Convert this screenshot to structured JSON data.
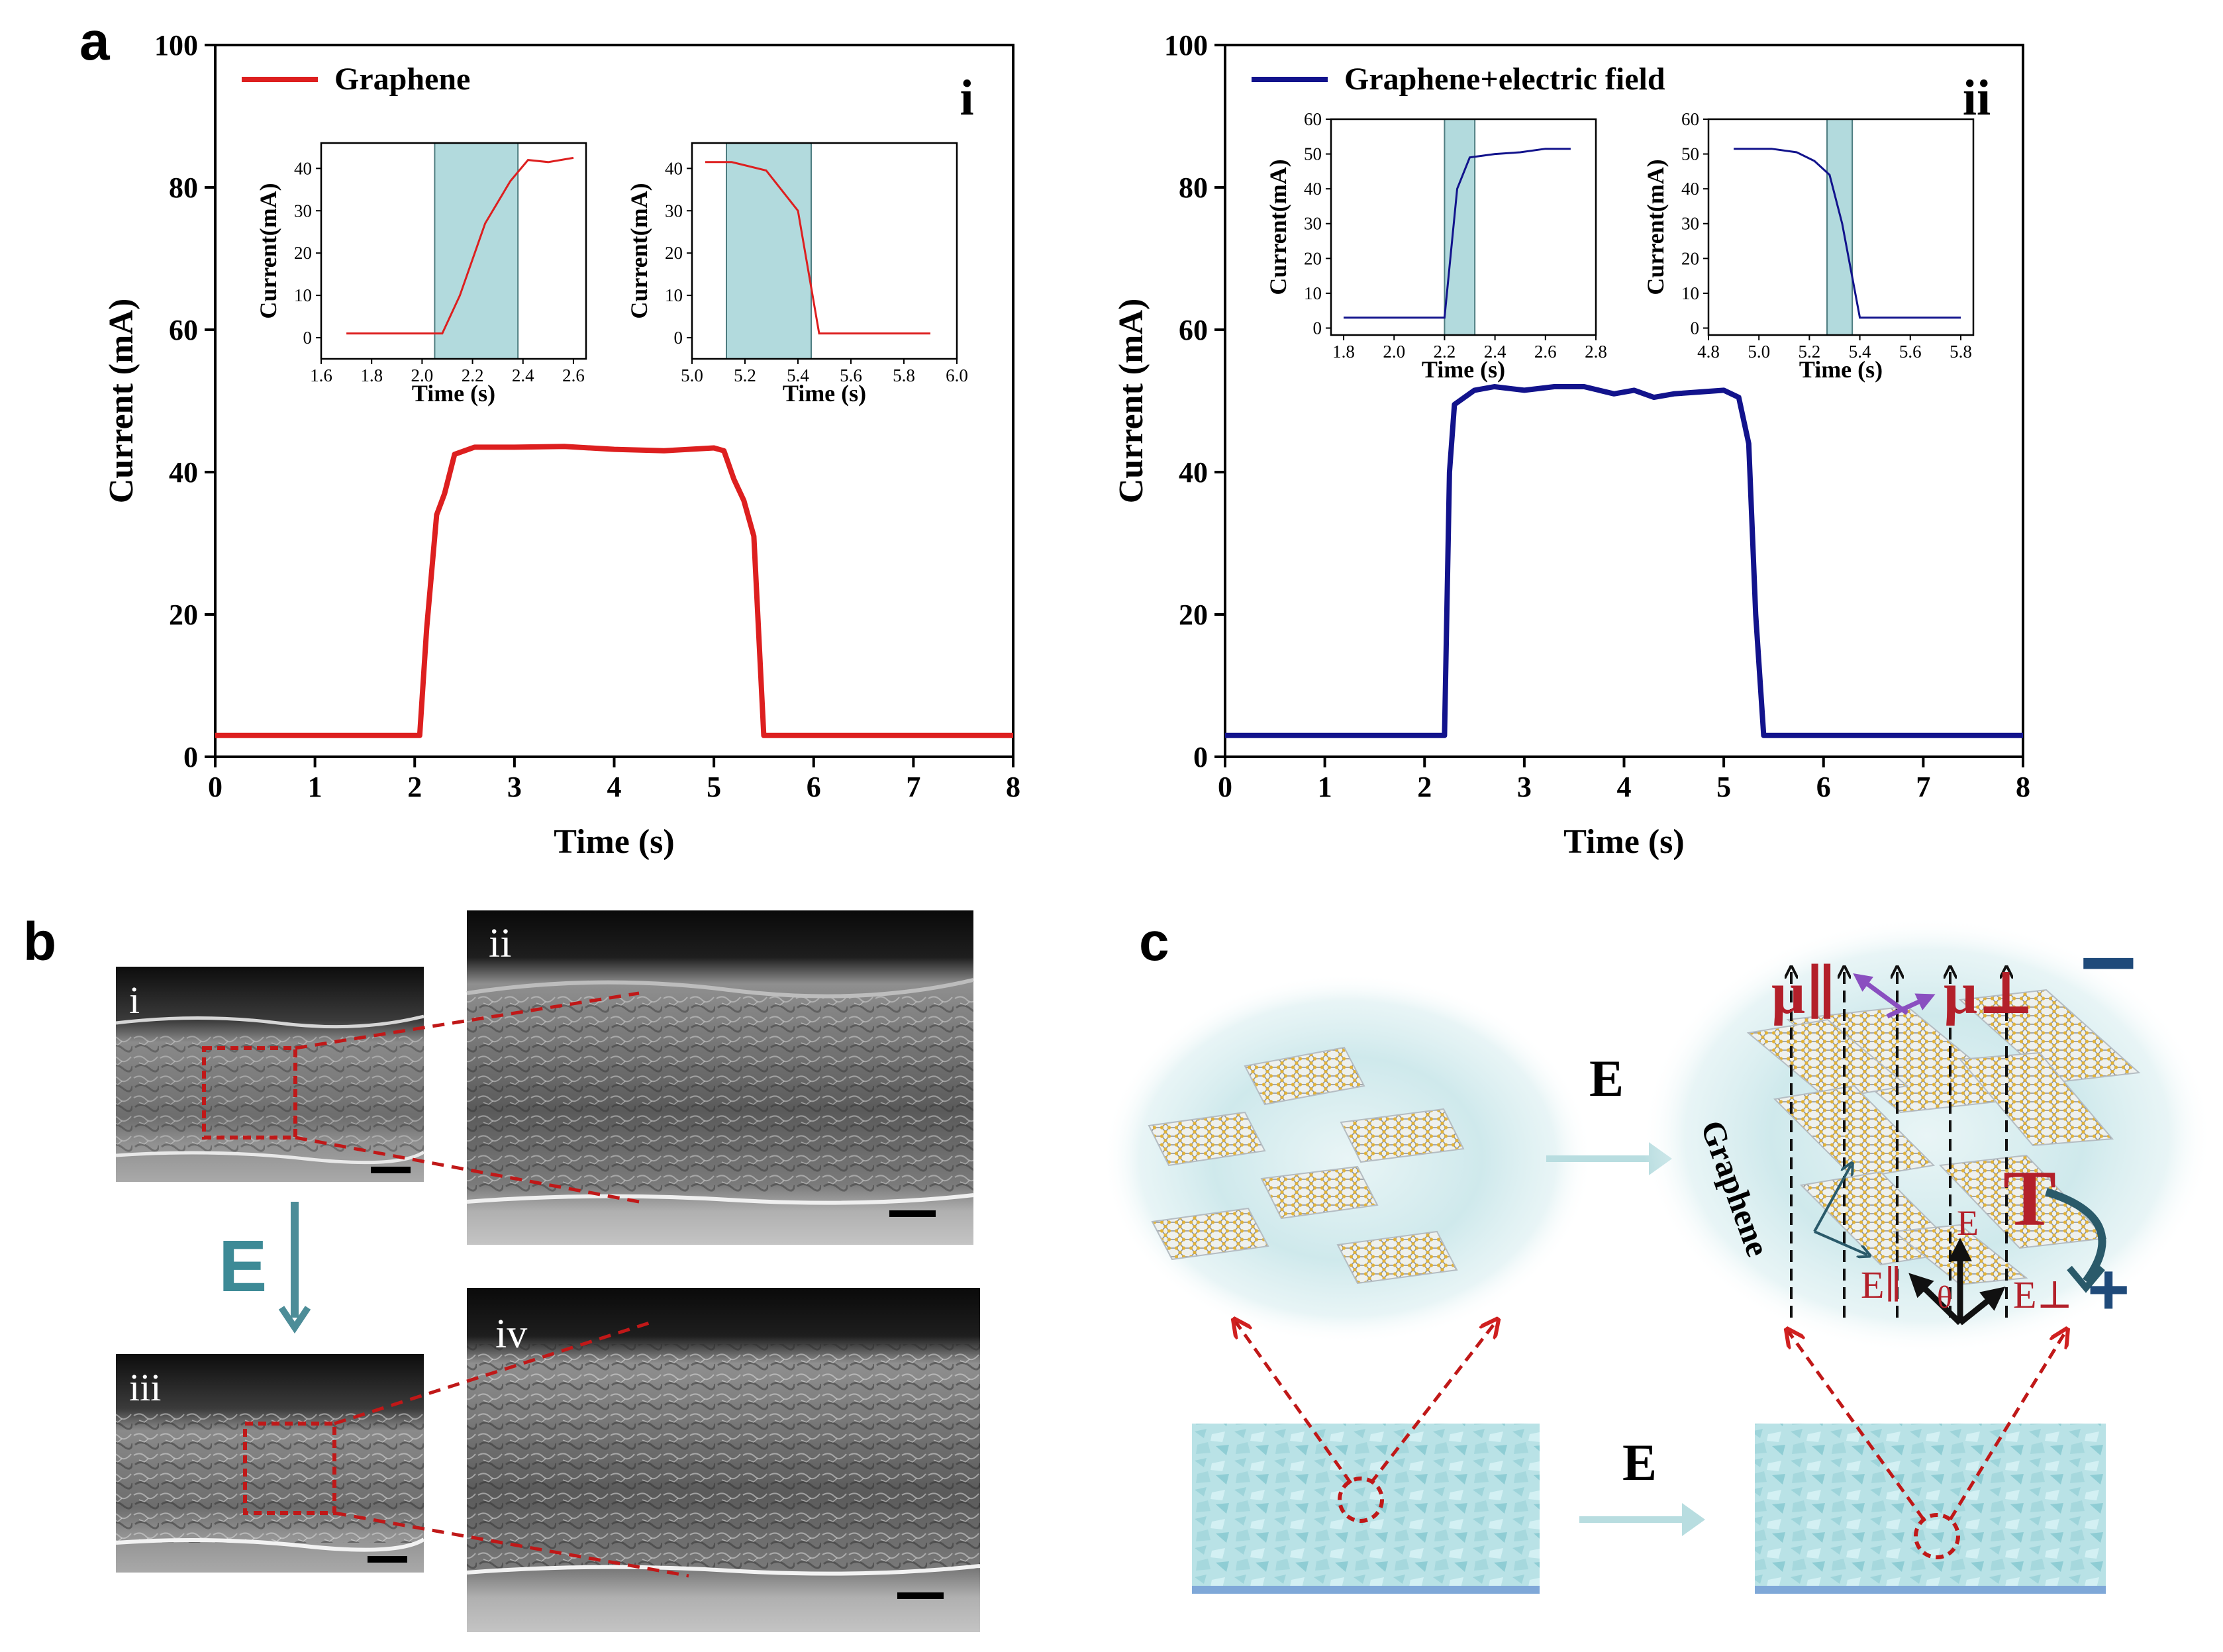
{
  "figure": {
    "panel_labels": {
      "a": "a",
      "b": "b",
      "c": "c"
    },
    "sub_labels": {
      "a_i": "i",
      "a_ii": "ii",
      "b_i": "i",
      "b_ii": "ii",
      "b_iii": "iii",
      "b_iv": "iv"
    },
    "b_arrow_label": "E",
    "c_labels": {
      "e_top": "E",
      "e_bottom": "E",
      "graphene": "Graphene",
      "mu_par": "μ∥",
      "mu_perp": "μ⊥",
      "torque": "T",
      "e_field": "E",
      "e_par": "E∥",
      "e_perp": "E⊥",
      "theta": "θ",
      "minus": "−",
      "plus": "+"
    },
    "colors": {
      "red": "#dd1f1f",
      "blue": "#12138c",
      "teal": "#b2dadd",
      "dark_red": "#b3202a",
      "navy": "#1f4a7a"
    }
  },
  "chart_data": [
    {
      "type": "line",
      "panel": "a-i",
      "series": [
        {
          "name": "Graphene",
          "color": "#dd1f1f",
          "x": [
            0,
            2.05,
            2.12,
            2.22,
            2.3,
            2.4,
            2.6,
            3.0,
            3.5,
            4.0,
            4.5,
            5.0,
            5.1,
            5.2,
            5.3,
            5.4,
            5.5,
            8
          ],
          "y": [
            3,
            3,
            18,
            34,
            37,
            42.5,
            43.5,
            43.5,
            43.6,
            43.2,
            43,
            43.4,
            43,
            39,
            36,
            31,
            3,
            3
          ]
        }
      ],
      "xlabel": "Time (s)",
      "ylabel": "Current (mA)",
      "xlim": [
        0,
        8
      ],
      "ylim": [
        0,
        100
      ],
      "xticks": [
        0,
        1,
        2,
        3,
        4,
        5,
        6,
        7,
        8
      ],
      "yticks": [
        0,
        20,
        40,
        60,
        80,
        100
      ],
      "insets": [
        {
          "xlabel": "Time (s)",
          "ylabel": "Current(mA)",
          "xlim": [
            1.6,
            2.65
          ],
          "ylim": [
            -5,
            46
          ],
          "xticks": [
            1.6,
            1.8,
            2.0,
            2.2,
            2.4,
            2.6
          ],
          "xtick_labels": [
            "1.6",
            "1.8",
            "2.0",
            "2.2",
            "2.4",
            "2.6"
          ],
          "yticks": [
            0,
            10,
            20,
            30,
            40
          ],
          "shade": [
            2.05,
            2.38
          ],
          "x": [
            1.7,
            2.08,
            2.15,
            2.25,
            2.35,
            2.42,
            2.5,
            2.6
          ],
          "y": [
            1,
            1,
            10,
            27,
            37,
            42,
            41.5,
            42.5
          ]
        },
        {
          "xlabel": "Time (s)",
          "ylabel": "Current(mA)",
          "xlim": [
            5.0,
            6.0
          ],
          "ylim": [
            -5,
            46
          ],
          "xticks": [
            5.0,
            5.2,
            5.4,
            5.6,
            5.8,
            6.0
          ],
          "xtick_labels": [
            "5.0",
            "5.2",
            "5.4",
            "5.6",
            "5.8",
            "6.0"
          ],
          "yticks": [
            0,
            10,
            20,
            30,
            40
          ],
          "shade": [
            5.13,
            5.45
          ],
          "x": [
            5.05,
            5.15,
            5.28,
            5.4,
            5.48,
            5.9
          ],
          "y": [
            41.5,
            41.5,
            39.5,
            30,
            1,
            1
          ]
        }
      ]
    },
    {
      "type": "line",
      "panel": "a-ii",
      "series": [
        {
          "name": "Graphene+electric field",
          "color": "#12138c",
          "x": [
            0,
            2.2,
            2.25,
            2.3,
            2.4,
            2.5,
            2.7,
            3.0,
            3.3,
            3.6,
            3.9,
            4.1,
            4.3,
            4.5,
            4.7,
            5.0,
            5.15,
            5.25,
            5.32,
            5.4,
            8
          ],
          "y": [
            3,
            3,
            40,
            49.5,
            50.5,
            51.5,
            52,
            51.5,
            52,
            52,
            51,
            51.5,
            50.5,
            51,
            51.2,
            51.5,
            50.5,
            44,
            20,
            3,
            3
          ]
        }
      ],
      "xlabel": "Time (s)",
      "ylabel": "Current (mA)",
      "xlim": [
        0,
        8
      ],
      "ylim": [
        0,
        100
      ],
      "xticks": [
        0,
        1,
        2,
        3,
        4,
        5,
        6,
        7,
        8
      ],
      "yticks": [
        0,
        20,
        40,
        60,
        80,
        100
      ],
      "insets": [
        {
          "xlabel": "Time (s)",
          "ylabel": "Current(mA)",
          "xlim": [
            1.75,
            2.8
          ],
          "ylim": [
            -2,
            60
          ],
          "xticks": [
            1.8,
            2.0,
            2.2,
            2.4,
            2.6,
            2.8
          ],
          "xtick_labels": [
            "1.8",
            "2.0",
            "2.2",
            "2.4",
            "2.6",
            "2.8"
          ],
          "yticks": [
            0,
            10,
            20,
            30,
            40,
            50,
            60
          ],
          "shade": [
            2.2,
            2.32
          ],
          "x": [
            1.8,
            2.2,
            2.25,
            2.3,
            2.4,
            2.5,
            2.6,
            2.7
          ],
          "y": [
            3,
            3,
            40,
            49,
            50,
            50.5,
            51.5,
            51.5
          ]
        },
        {
          "xlabel": "Time (s)",
          "ylabel": "Current(mA)",
          "xlim": [
            4.8,
            5.85
          ],
          "ylim": [
            -2,
            60
          ],
          "xticks": [
            4.8,
            5.0,
            5.2,
            5.4,
            5.6,
            5.8
          ],
          "xtick_labels": [
            "4.8",
            "5.0",
            "5.2",
            "5.4",
            "5.6",
            "5.8"
          ],
          "yticks": [
            0,
            10,
            20,
            30,
            40,
            50,
            60
          ],
          "shade": [
            5.27,
            5.37
          ],
          "x": [
            4.9,
            5.05,
            5.15,
            5.22,
            5.28,
            5.33,
            5.4,
            5.5,
            5.8
          ],
          "y": [
            51.5,
            51.5,
            50.5,
            48,
            44,
            30,
            3,
            3,
            3
          ]
        }
      ]
    }
  ]
}
